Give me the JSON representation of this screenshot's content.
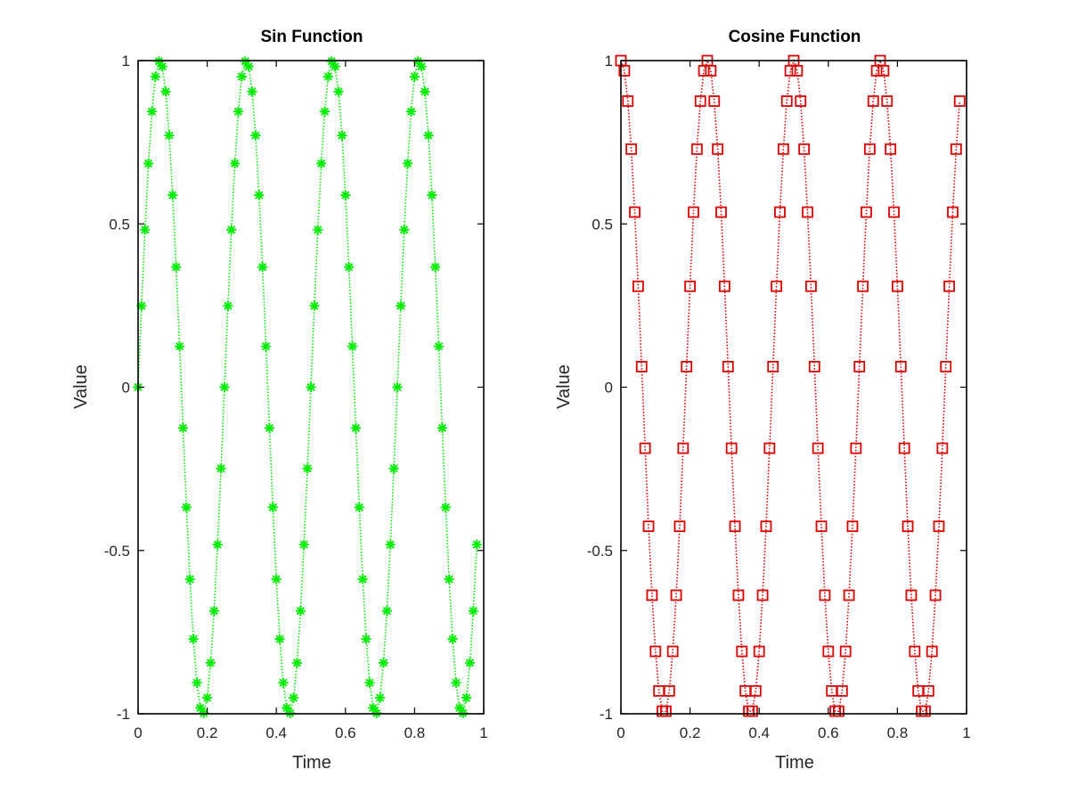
{
  "chart_data": [
    {
      "type": "line",
      "title": "Sin Function",
      "xlabel": "Time",
      "ylabel": "Value",
      "xlim": [
        0,
        1
      ],
      "ylim": [
        -1,
        1
      ],
      "xticks": [
        0,
        0.2,
        0.4,
        0.6,
        0.8,
        1
      ],
      "xtick_labels": [
        "0",
        "0.2",
        "0.4",
        "0.6",
        "0.8",
        "1"
      ],
      "yticks": [
        -1,
        -0.5,
        0,
        0.5,
        1
      ],
      "ytick_labels": [
        "-1",
        "-0.5",
        "0",
        "0.5",
        "1"
      ],
      "grid": false,
      "legend": null,
      "series": [
        {
          "color": "#00ee00",
          "line_style": "dotted",
          "marker": "asterisk",
          "x": [
            0,
            0.01,
            0.02,
            0.03,
            0.04,
            0.05,
            0.06,
            0.07,
            0.08,
            0.09,
            0.1,
            0.11,
            0.12,
            0.13,
            0.14,
            0.15,
            0.16,
            0.17,
            0.18,
            0.19,
            0.2,
            0.21,
            0.22,
            0.23,
            0.24,
            0.25,
            0.26,
            0.27,
            0.28,
            0.29,
            0.3,
            0.31,
            0.32,
            0.33,
            0.34,
            0.35,
            0.36,
            0.37,
            0.38,
            0.39,
            0.4,
            0.41,
            0.42,
            0.43,
            0.44,
            0.45,
            0.46,
            0.47,
            0.48,
            0.49,
            0.5,
            0.51,
            0.52,
            0.53,
            0.54,
            0.55,
            0.56,
            0.57,
            0.58,
            0.59,
            0.6,
            0.61,
            0.62,
            0.63,
            0.64,
            0.65,
            0.66,
            0.67,
            0.68,
            0.69,
            0.7,
            0.71,
            0.72,
            0.73,
            0.74,
            0.75,
            0.76,
            0.77,
            0.78,
            0.79,
            0.8,
            0.81,
            0.82,
            0.83,
            0.84,
            0.85,
            0.86,
            0.87,
            0.88,
            0.89,
            0.9,
            0.91,
            0.92,
            0.93,
            0.94,
            0.95,
            0.96,
            0.97,
            0.98
          ],
          "y": [
            0,
            0.249,
            0.482,
            0.685,
            0.844,
            0.951,
            0.998,
            0.982,
            0.905,
            0.771,
            0.588,
            0.368,
            0.125,
            -0.125,
            -0.368,
            -0.588,
            -0.771,
            -0.905,
            -0.982,
            -0.998,
            -0.951,
            -0.844,
            -0.685,
            -0.482,
            -0.249,
            0,
            0.249,
            0.482,
            0.685,
            0.844,
            0.951,
            0.998,
            0.982,
            0.905,
            0.771,
            0.588,
            0.368,
            0.125,
            -0.125,
            -0.368,
            -0.588,
            -0.771,
            -0.905,
            -0.982,
            -0.998,
            -0.951,
            -0.844,
            -0.685,
            -0.482,
            -0.249,
            0,
            0.249,
            0.482,
            0.685,
            0.844,
            0.951,
            0.998,
            0.982,
            0.905,
            0.771,
            0.588,
            0.368,
            0.125,
            -0.125,
            -0.368,
            -0.588,
            -0.771,
            -0.905,
            -0.982,
            -0.998,
            -0.951,
            -0.844,
            -0.685,
            -0.482,
            -0.249,
            0,
            0.249,
            0.482,
            0.685,
            0.844,
            0.951,
            0.998,
            0.982,
            0.905,
            0.771,
            0.588,
            0.368,
            0.125,
            -0.125,
            -0.368,
            -0.588,
            -0.771,
            -0.905,
            -0.982,
            -0.998,
            -0.951,
            -0.844,
            -0.685,
            -0.482
          ]
        }
      ]
    },
    {
      "type": "line",
      "title": "Cosine Function",
      "xlabel": "Time",
      "ylabel": "Value",
      "xlim": [
        0,
        1
      ],
      "ylim": [
        -1,
        1
      ],
      "xticks": [
        0,
        0.2,
        0.4,
        0.6,
        0.8,
        1
      ],
      "xtick_labels": [
        "0",
        "0.2",
        "0.4",
        "0.6",
        "0.8",
        "1"
      ],
      "yticks": [
        -1,
        -0.5,
        0,
        0.5,
        1
      ],
      "ytick_labels": [
        "-1",
        "-0.5",
        "0",
        "0.5",
        "1"
      ],
      "grid": false,
      "legend": null,
      "series": [
        {
          "color": "#dd0000",
          "line_style": "dotted",
          "marker": "square",
          "x": [
            0,
            0.01,
            0.02,
            0.03,
            0.04,
            0.05,
            0.06,
            0.07,
            0.08,
            0.09,
            0.1,
            0.11,
            0.12,
            0.13,
            0.14,
            0.15,
            0.16,
            0.17,
            0.18,
            0.19,
            0.2,
            0.21,
            0.22,
            0.23,
            0.24,
            0.25,
            0.26,
            0.27,
            0.28,
            0.29,
            0.3,
            0.31,
            0.32,
            0.33,
            0.34,
            0.35,
            0.36,
            0.37,
            0.38,
            0.39,
            0.4,
            0.41,
            0.42,
            0.43,
            0.44,
            0.45,
            0.46,
            0.47,
            0.48,
            0.49,
            0.5,
            0.51,
            0.52,
            0.53,
            0.54,
            0.55,
            0.56,
            0.57,
            0.58,
            0.59,
            0.6,
            0.61,
            0.62,
            0.63,
            0.64,
            0.65,
            0.66,
            0.67,
            0.68,
            0.69,
            0.7,
            0.71,
            0.72,
            0.73,
            0.74,
            0.75,
            0.76,
            0.77,
            0.78,
            0.79,
            0.8,
            0.81,
            0.82,
            0.83,
            0.84,
            0.85,
            0.86,
            0.87,
            0.88,
            0.89,
            0.9,
            0.91,
            0.92,
            0.93,
            0.94,
            0.95,
            0.96,
            0.97,
            0.98
          ],
          "y": [
            1,
            0.969,
            0.876,
            0.729,
            0.536,
            0.309,
            0.063,
            -0.187,
            -0.426,
            -0.637,
            -0.809,
            -0.93,
            -0.992,
            -0.992,
            -0.93,
            -0.809,
            -0.637,
            -0.426,
            -0.187,
            0.063,
            0.309,
            0.536,
            0.729,
            0.876,
            0.969,
            1,
            0.969,
            0.876,
            0.729,
            0.536,
            0.309,
            0.063,
            -0.187,
            -0.426,
            -0.637,
            -0.809,
            -0.93,
            -0.992,
            -0.992,
            -0.93,
            -0.809,
            -0.637,
            -0.426,
            -0.187,
            0.063,
            0.309,
            0.536,
            0.729,
            0.876,
            0.969,
            1,
            0.969,
            0.876,
            0.729,
            0.536,
            0.309,
            0.063,
            -0.187,
            -0.426,
            -0.637,
            -0.809,
            -0.93,
            -0.992,
            -0.992,
            -0.93,
            -0.809,
            -0.637,
            -0.426,
            -0.187,
            0.063,
            0.309,
            0.536,
            0.729,
            0.876,
            0.969,
            1,
            0.969,
            0.876,
            0.729,
            0.536,
            0.309,
            0.063,
            -0.187,
            -0.426,
            -0.637,
            -0.809,
            -0.93,
            -0.992,
            -0.992,
            -0.93,
            -0.809,
            -0.637,
            -0.426,
            -0.187,
            0.063,
            0.309,
            0.536,
            0.729,
            0.876
          ]
        }
      ]
    }
  ]
}
